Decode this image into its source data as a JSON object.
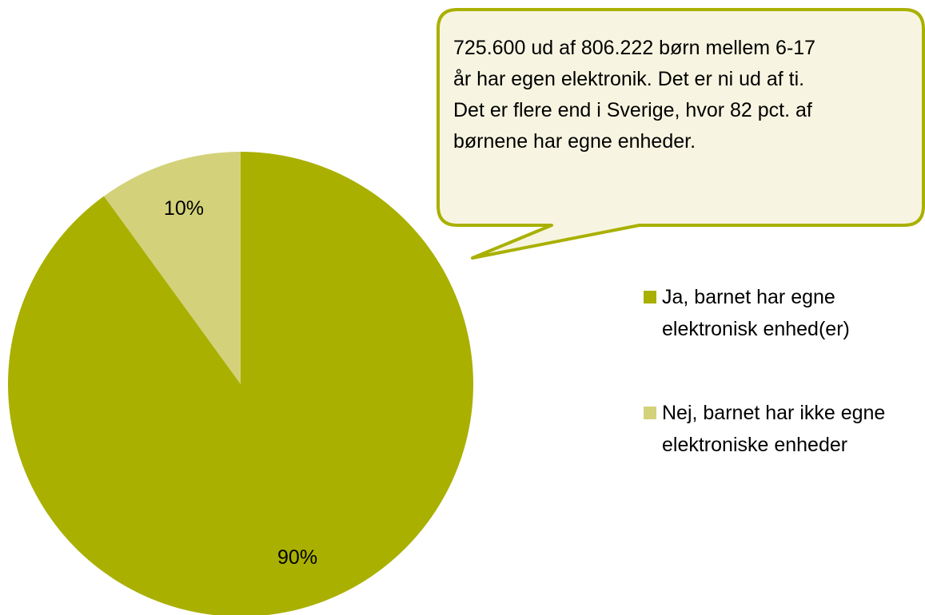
{
  "chart_data": {
    "type": "pie",
    "series": [
      {
        "name": "Ja, barnet har egne elektronisk enhed(er)",
        "color": "#a9b000"
      },
      {
        "name": "Nej, barnet har ikke egne elektroniske enheder",
        "color": "#d3d27a"
      }
    ],
    "values": [
      90,
      10
    ],
    "value_labels": [
      "90%",
      "10%"
    ],
    "annotations": [
      "725.600 ud af 806.222 børn mellem 6-17 år har egen elektronik. Det er ni ud af ti.",
      "Det er flere end i Sverige, hvor 82 pct. af børnene har egne enheder."
    ],
    "legend": "right"
  }
}
